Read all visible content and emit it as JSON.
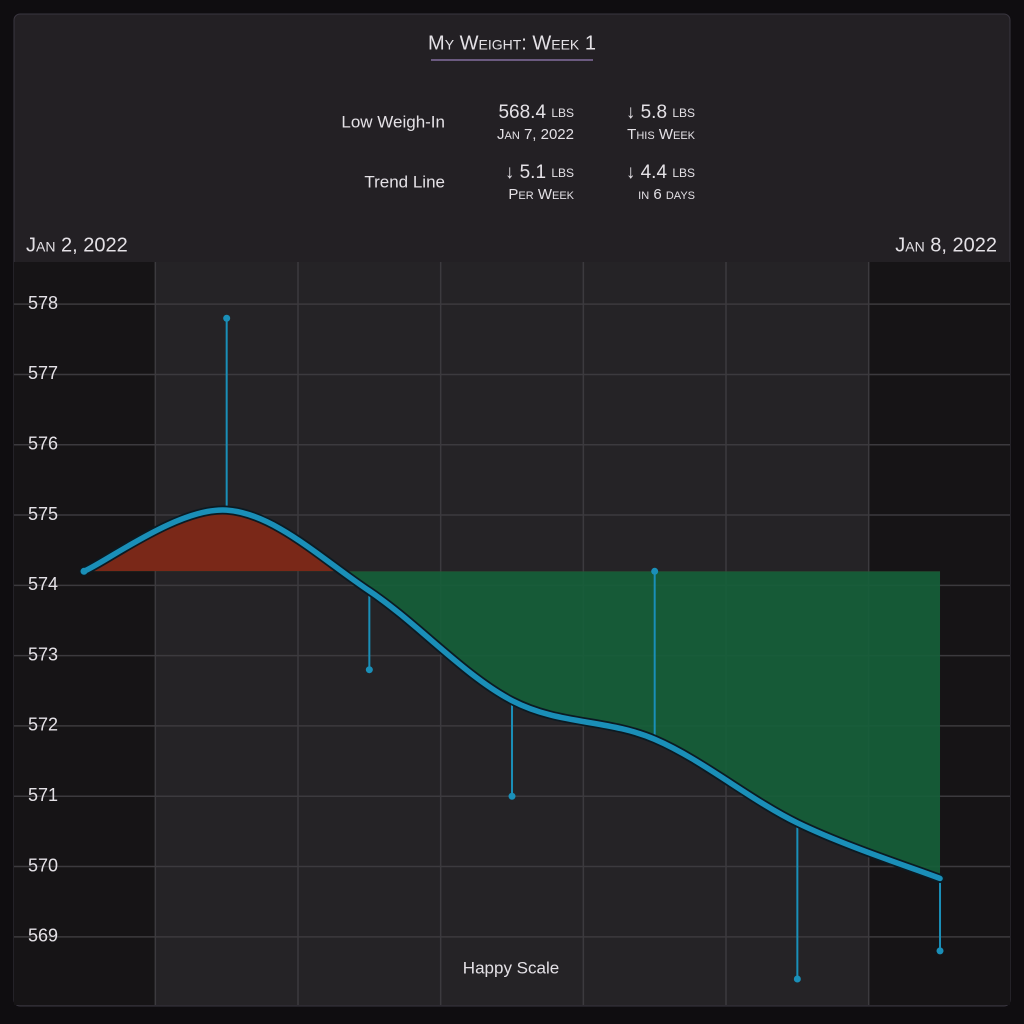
{
  "chart_data": {
    "type": "line",
    "title": "My Weight: Week 1",
    "stats": [
      {
        "label": "Low Weigh-In",
        "cells": [
          {
            "value": "568.4",
            "unit": "lbs",
            "note": "Jan 7, 2022"
          },
          {
            "value": "↓ 5.8",
            "unit": "lbs",
            "note": "This Week"
          }
        ]
      },
      {
        "label": "Trend Line",
        "cells": [
          {
            "value": "↓ 5.1",
            "unit": "lbs",
            "note": "Per Week"
          },
          {
            "value": "↓ 4.4",
            "unit": "lbs",
            "note": "in 6 days"
          }
        ]
      }
    ],
    "categories": [
      "Jan 2, 2022",
      null,
      null,
      null,
      null,
      null,
      "Jan 8, 2022"
    ],
    "trend": {
      "color": "#1a8fb8",
      "values": [
        574.2,
        575.07,
        573.92,
        572.36,
        571.81,
        570.62,
        569.83
      ]
    },
    "weigh_ins": {
      "color": "#1a8fb8",
      "values": [
        574.2,
        577.8,
        572.8,
        571.0,
        574.2,
        568.4,
        568.8
      ]
    },
    "gain_color": "#7a2818",
    "loss_color": "#15603a",
    "ylim": [
      568.03,
      578.6
    ],
    "yticks": [
      569,
      570,
      571,
      572,
      573,
      574,
      575,
      576,
      577,
      578
    ],
    "grid": true,
    "watermark": "Happy Scale"
  }
}
